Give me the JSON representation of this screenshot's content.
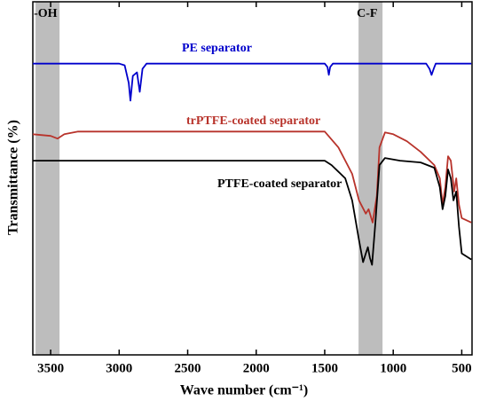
{
  "chart_data": {
    "type": "line",
    "xlabel": "Wave number (cm⁻¹)",
    "ylabel": "Transmittance (%)",
    "xlim": [
      3630,
      425
    ],
    "xticks": [
      3500,
      3000,
      2500,
      2000,
      1500,
      1000,
      500
    ],
    "ylim": [
      0,
      100
    ],
    "bands": [
      {
        "label": "-OH",
        "range": [
          3610,
          3435
        ]
      },
      {
        "label": "C-F",
        "range": [
          1253,
          1078
        ]
      }
    ],
    "series": [
      {
        "name": "PE separator",
        "color": "#0000cc",
        "x": [
          3630,
          3000,
          2960,
          2930,
          2918,
          2900,
          2870,
          2850,
          2830,
          2800,
          1500,
          1480,
          1470,
          1460,
          1440,
          760,
          735,
          720,
          705,
          690,
          430
        ],
        "values": [
          82.5,
          82.5,
          82,
          77,
          72,
          79,
          80,
          74.5,
          81,
          82.5,
          82.5,
          81.5,
          79.3,
          81.5,
          82.5,
          82.5,
          81,
          79.3,
          81,
          82.5,
          82.5
        ]
      },
      {
        "name": "trPTFE-coated separator",
        "color": "#b8332b",
        "x": [
          3630,
          3500,
          3450,
          3400,
          3300,
          1500,
          1400,
          1300,
          1250,
          1200,
          1180,
          1150,
          1120,
          1100,
          1060,
          1000,
          900,
          800,
          700,
          660,
          640,
          620,
          600,
          580,
          555,
          540,
          520,
          500,
          430
        ],
        "values": [
          62.5,
          62,
          61.25,
          62.5,
          63.25,
          63.25,
          58.75,
          51.25,
          43.75,
          40,
          41.25,
          37.5,
          45,
          58.75,
          63,
          62.5,
          60.5,
          57.5,
          53.75,
          50,
          42.5,
          47.5,
          56.25,
          55,
          46.25,
          50,
          42.5,
          38.75,
          37.5
        ]
      },
      {
        "name": "PTFE-coated separator",
        "color": "#000000",
        "x": [
          3630,
          1500,
          1450,
          1350,
          1300,
          1250,
          1220,
          1200,
          1185,
          1170,
          1155,
          1130,
          1100,
          1060,
          950,
          800,
          700,
          660,
          640,
          620,
          600,
          580,
          560,
          540,
          520,
          500,
          430
        ],
        "values": [
          55,
          55,
          53.75,
          50,
          43.75,
          32.5,
          26.25,
          28.75,
          30.5,
          27.5,
          25.5,
          37.5,
          53.75,
          55.75,
          55,
          54.5,
          53,
          47.5,
          41.25,
          45,
          52.5,
          50,
          43.75,
          46.25,
          36.25,
          28.75,
          27
        ]
      }
    ]
  }
}
